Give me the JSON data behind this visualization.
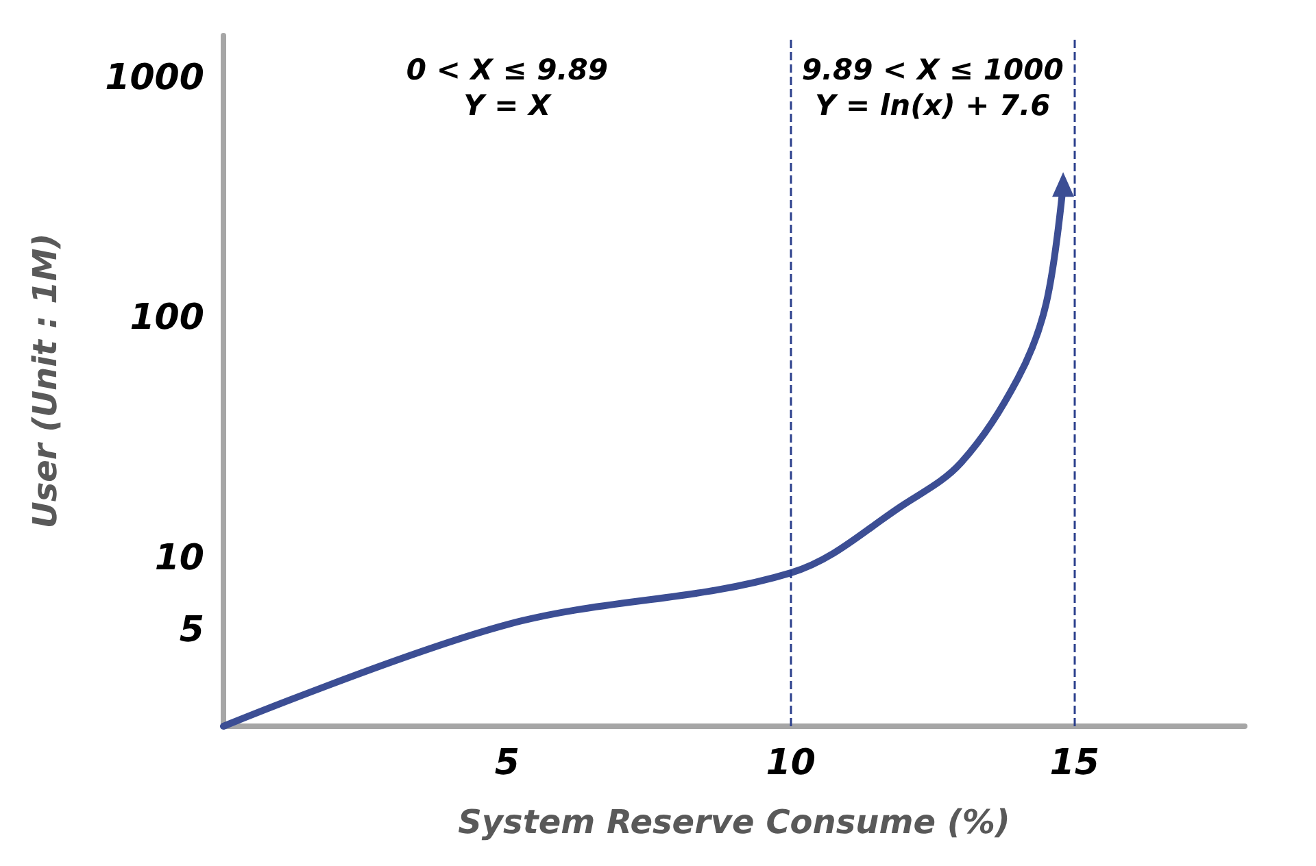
{
  "chart_data": {
    "type": "line",
    "xlabel": "System Reserve Consume (%)",
    "ylabel": "User (Unit : 1M)",
    "x": [
      0,
      5,
      10,
      12,
      13,
      14,
      14.5,
      14.8
    ],
    "series": [
      {
        "color": "#3c4e94",
        "values": [
          2,
          5.3,
          8.7,
          16.8,
          25,
          56,
          115,
          360
        ]
      }
    ],
    "xlim": [
      0,
      18
    ],
    "xticks": [
      5,
      10,
      15
    ],
    "ylim": [
      2,
      1500
    ],
    "yticks": [
      5,
      10,
      100,
      1000
    ],
    "log": "y",
    "grid": false,
    "marker": "none",
    "line_style": "solid",
    "ref_lines": [
      {
        "axis": "x",
        "value": 10,
        "color": "#2b3f8c",
        "line_style": "dashed"
      },
      {
        "axis": "x",
        "value": 15,
        "color": "#2b3f8c",
        "line_style": "dashed"
      }
    ],
    "annotations": [
      "0 < X ≤ 9.89\nY = X",
      "9.89 < X ≤ 1000\nY = ln(x) + 7.6"
    ]
  }
}
